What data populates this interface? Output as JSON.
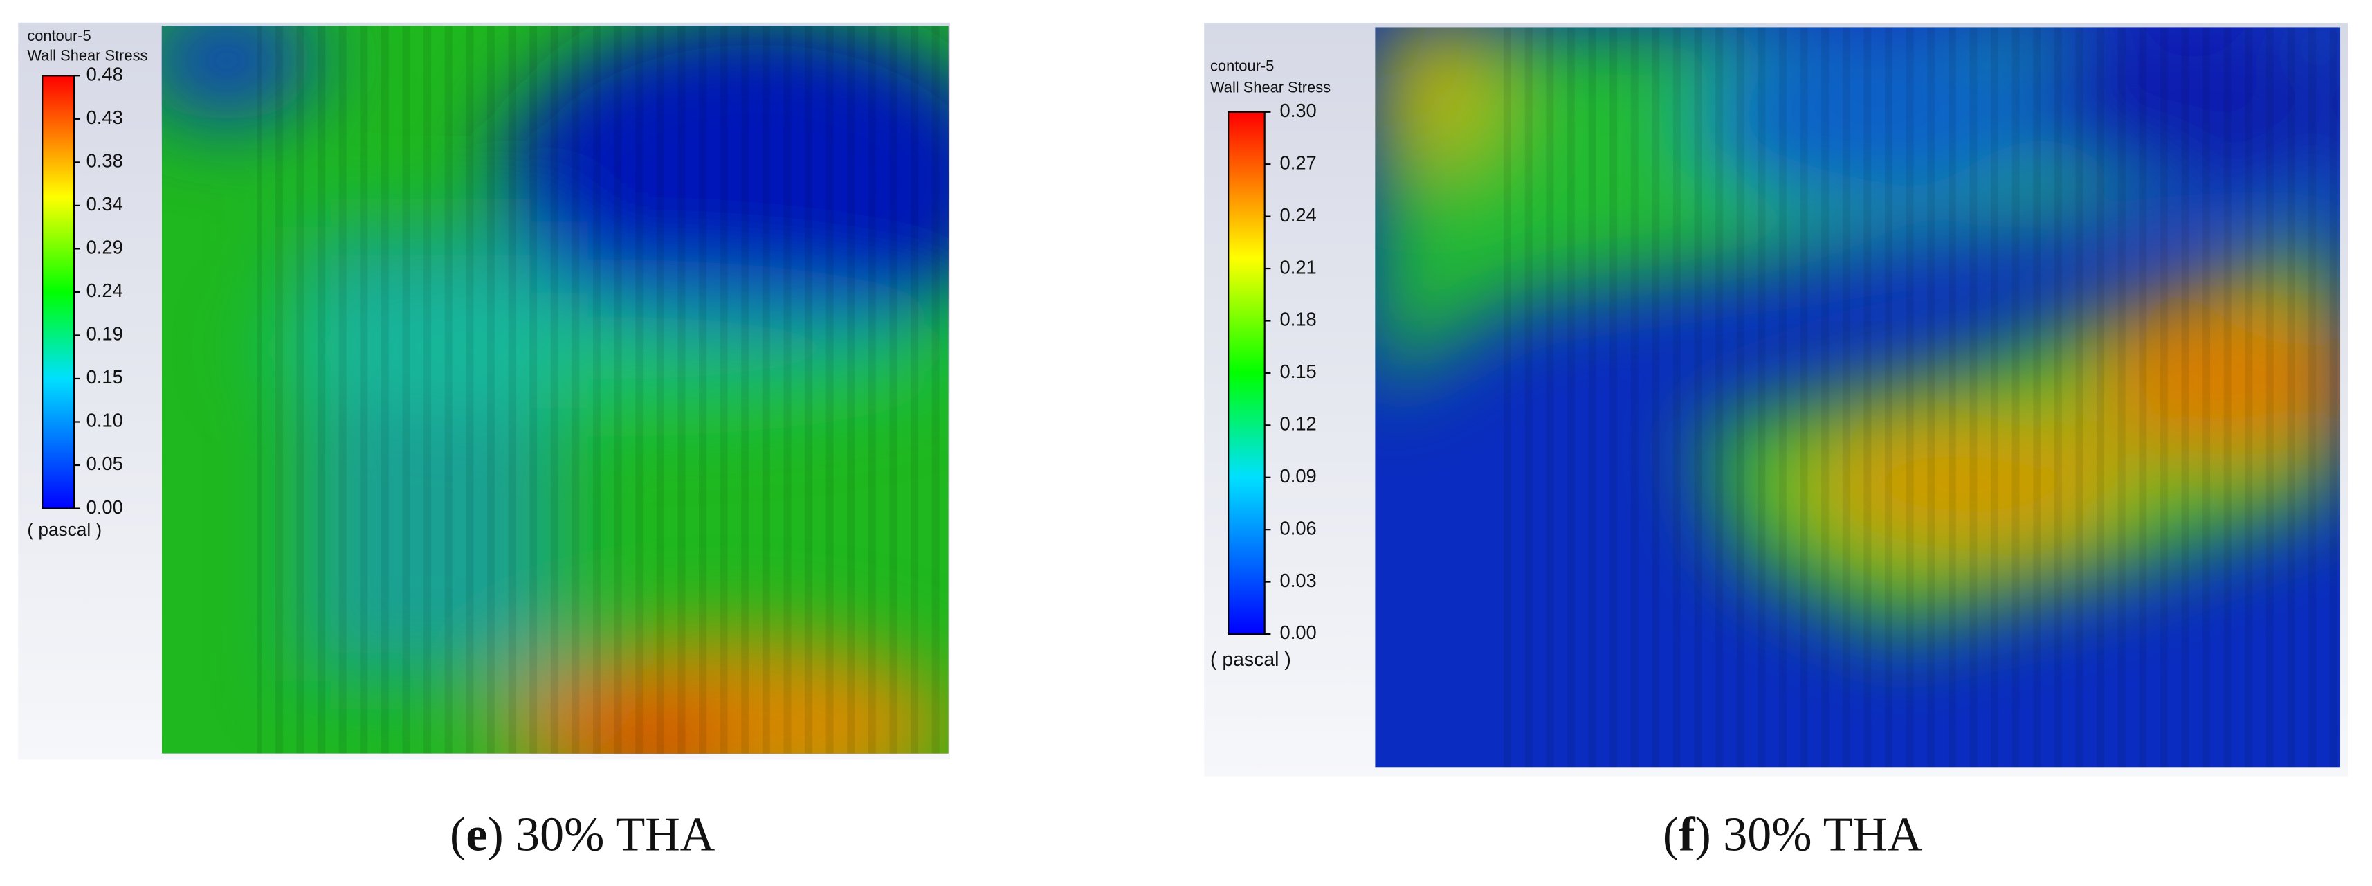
{
  "panels": [
    {
      "contour": "contour-5",
      "variable": "Wall Shear Stress",
      "ticks": [
        "0.48",
        "0.43",
        "0.38",
        "0.34",
        "0.29",
        "0.24",
        "0.19",
        "0.15",
        "0.10",
        "0.05",
        "0.00"
      ],
      "unit": "( pascal )",
      "caption": {
        "open": "(",
        "letter": "e",
        "rest": ") 30% THA"
      }
    },
    {
      "contour": "contour-5",
      "variable": "Wall Shear Stress",
      "ticks": [
        "0.30",
        "0.27",
        "0.24",
        "0.21",
        "0.18",
        "0.15",
        "0.12",
        "0.09",
        "0.06",
        "0.03",
        "0.00"
      ],
      "unit": "( pascal )",
      "caption": {
        "open": "(",
        "letter": "f",
        "rest": ") 30% THA"
      }
    }
  ]
}
